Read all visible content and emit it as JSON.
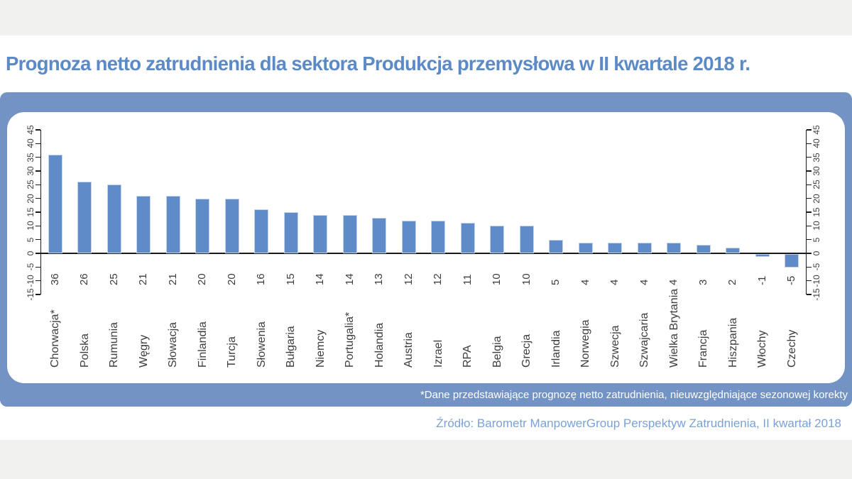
{
  "title": "Prognoza netto zatrudnienia dla sektora Produkcja przemysłowa w II kwartale 2018 r.",
  "footnote": "*Dane przedstawiające prognozę netto zatrudnienia, nieuwzględniające sezonowej korekty",
  "source": "Źródło: Barometr ManpowerGroup Perspektyw Zatrudnienia, II kwartał 2018",
  "colors": {
    "band": "#f0f0ef",
    "panel": "#7393c5",
    "bar": "#5f8cc8",
    "bar_border": "#c3d3e9",
    "title": "#5c8ac6",
    "source": "#7aa2d6",
    "axis": "#1a1a1a",
    "label": "#3d3d3d"
  },
  "chart_data": {
    "type": "bar",
    "title": "Prognoza netto zatrudnienia dla sektora Produkcja przemysłowa w II kwartale 2018 r.",
    "categories": [
      "Chorwacja*",
      "Polska",
      "Rumunia",
      "Węgry",
      "Słowacja",
      "Finlandia",
      "Turcja",
      "Słowenia",
      "Bułgaria",
      "Niemcy",
      "Portugalia*",
      "Holandia",
      "Austria",
      "Izrael",
      "RPA",
      "Belgia",
      "Grecja",
      "Irlandia",
      "Norwegia",
      "Szwecja",
      "Szwajcaria",
      "Wielka Brytania",
      "Francja",
      "Hiszpania",
      "Włochy",
      "Czechy"
    ],
    "values": [
      36,
      26,
      25,
      21,
      21,
      20,
      20,
      16,
      15,
      14,
      14,
      13,
      12,
      12,
      11,
      10,
      10,
      5,
      4,
      4,
      4,
      4,
      3,
      2,
      -1,
      -5
    ],
    "xlabel": "",
    "ylabel": "",
    "ylim": [
      -15,
      45
    ],
    "ytick_step": 5,
    "grid": false,
    "legend": "none",
    "axis_sides": "left-and-right",
    "bar_value_labels": true,
    "label_rotation_deg": -90
  }
}
